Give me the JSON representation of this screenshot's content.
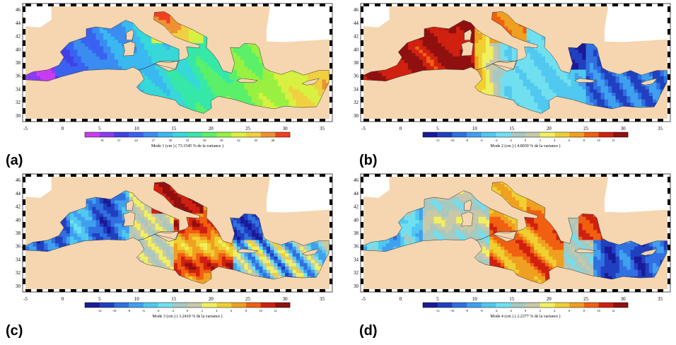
{
  "axes": {
    "lon_ticks": [
      "-5",
      "0",
      "5",
      "10",
      "15",
      "20",
      "25",
      "30",
      "35"
    ],
    "lat_ticks": [
      "46",
      "44",
      "42",
      "40",
      "38",
      "36",
      "34",
      "32",
      "30"
    ]
  },
  "panels": [
    {
      "letter": "(a)",
      "caption": "Mode 1 (cm      ) ( 73.1545 % de la variance )",
      "colorbar_ticks": [
        "18",
        "21",
        "24",
        "27",
        "30",
        "33",
        "36",
        "39",
        "42",
        "45",
        "48"
      ],
      "colorbar_colors": [
        "#c83cf0",
        "#8a3cf0",
        "#4040e8",
        "#3a62f0",
        "#3a8cf0",
        "#3ab8f0",
        "#36d8d8",
        "#36e8a8",
        "#5af06a",
        "#9af040",
        "#d8f040",
        "#f0d040",
        "#f09030",
        "#f04020"
      ],
      "scheme": "mode1"
    },
    {
      "letter": "(b)",
      "caption": "Mode 2 (cm      ) ( 4.8030 % de la variance )",
      "colorbar_ticks": [
        "-12",
        "-10",
        "-8",
        "-6",
        "-4",
        "-2",
        "0",
        "2",
        "4",
        "6",
        "8",
        "10",
        "12"
      ],
      "colorbar_colors": [
        "#1a1a9a",
        "#2040c0",
        "#3070e0",
        "#40a0f0",
        "#50c8f0",
        "#70e0f0",
        "#a8c8c0",
        "#c8c8a8",
        "#f0f060",
        "#f0d030",
        "#f0a020",
        "#f06010",
        "#d02010",
        "#901010"
      ],
      "scheme": "mode2"
    },
    {
      "letter": "(c)",
      "caption": "Mode 3 (cm      ) ( 3.2410 % de la variance )",
      "colorbar_ticks": [
        "-12",
        "-10",
        "-8",
        "-6",
        "-4",
        "-2",
        "0",
        "2",
        "4",
        "6",
        "8",
        "10",
        "12"
      ],
      "colorbar_colors": [
        "#1a1a9a",
        "#2040c0",
        "#3070e0",
        "#40a0f0",
        "#50c8f0",
        "#70e0f0",
        "#a8c8c0",
        "#c8c8a8",
        "#f0f060",
        "#f0d030",
        "#f0a020",
        "#f06010",
        "#d02010",
        "#901010"
      ],
      "scheme": "mode3"
    },
    {
      "letter": "(d)",
      "caption": "Mode 4 (cm      ) ( 2.2377 % de la variance )",
      "colorbar_ticks": [
        "-12",
        "-10",
        "-8",
        "-6",
        "-4",
        "-2",
        "0",
        "2",
        "4",
        "6",
        "8",
        "10",
        "12"
      ],
      "colorbar_colors": [
        "#1a1a9a",
        "#2040c0",
        "#3070e0",
        "#40a0f0",
        "#50c8f0",
        "#70e0f0",
        "#a8c8c0",
        "#c8c8a8",
        "#f0f060",
        "#f0d030",
        "#f0a020",
        "#f06010",
        "#d02010",
        "#901010"
      ],
      "scheme": "mode4"
    }
  ],
  "land_color": "#f5d6b0",
  "ocean_outside_color": "#ffffff"
}
